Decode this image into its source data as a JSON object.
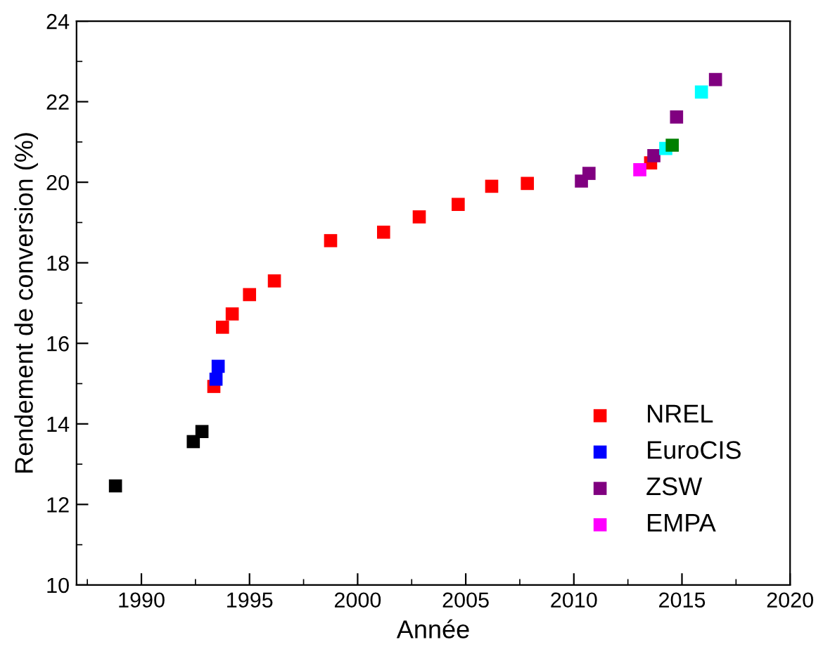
{
  "chart_data": {
    "type": "scatter",
    "xlabel": "Année",
    "ylabel": "Rendement de conversion (%)",
    "xlim": [
      1987,
      2020
    ],
    "xticks": [
      1990,
      1995,
      2000,
      2005,
      2010,
      2015,
      2020
    ],
    "ylim": [
      10,
      24
    ],
    "yticks": [
      10,
      12,
      14,
      16,
      18,
      20,
      22,
      24
    ],
    "grid": false,
    "legend": "bottom right",
    "marker": "square",
    "series": [
      {
        "color": "#000000",
        "x": [
          1988.8,
          1992.4,
          1992.8
        ],
        "values": [
          12.46,
          13.56,
          13.81
        ]
      },
      {
        "name": "NREL",
        "color": "#ff0000",
        "x": [
          1993.35,
          1993.75,
          1994.2,
          1995.0,
          1996.15,
          1998.75,
          2001.2,
          2002.85,
          2004.65,
          2006.2,
          2007.85,
          2013.55
        ],
        "values": [
          14.93,
          16.4,
          16.73,
          17.21,
          17.55,
          18.55,
          18.76,
          19.14,
          19.45,
          19.9,
          19.97,
          20.48
        ]
      },
      {
        "name": "EuroCIS",
        "color": "#0000ff",
        "x": [
          1993.45,
          1993.55
        ],
        "values": [
          15.11,
          15.43
        ]
      },
      {
        "name": "ZSW",
        "color": "#800080",
        "x": [
          2010.35,
          2010.7,
          2013.7,
          2014.75,
          2016.55
        ],
        "values": [
          20.03,
          20.22,
          20.66,
          21.62,
          22.55
        ]
      },
      {
        "name": "EMPA",
        "color": "#ff00ff",
        "x": [
          2013.05
        ],
        "values": [
          20.31
        ]
      },
      {
        "color": "#00ffff",
        "x": [
          2014.25,
          2015.9
        ],
        "values": [
          20.84,
          22.24
        ]
      },
      {
        "color": "#008000",
        "x": [
          2014.55
        ],
        "values": [
          20.92
        ]
      }
    ]
  }
}
